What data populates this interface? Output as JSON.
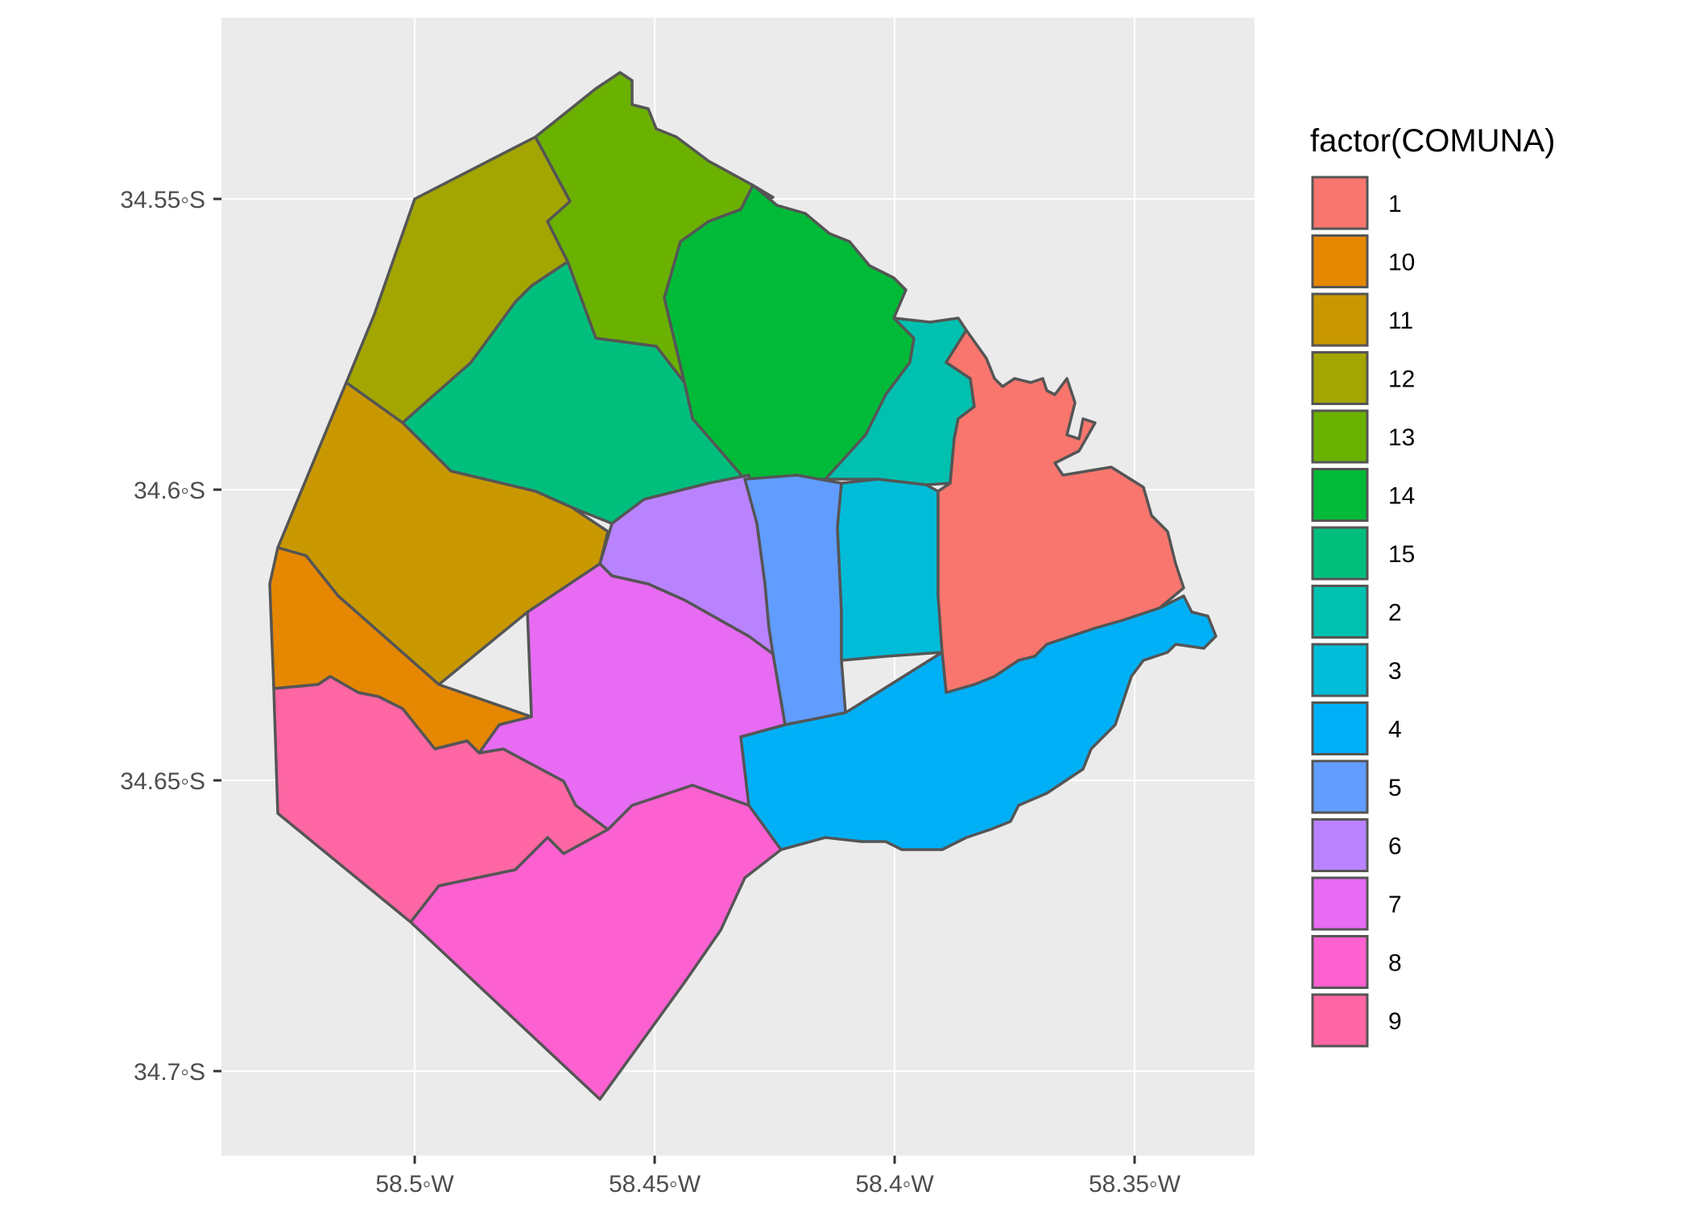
{
  "chart_data": {
    "type": "choropleth",
    "title": "",
    "x_ticks": [
      "58.5◦W",
      "58.45◦W",
      "58.4◦W",
      "58.35◦W"
    ],
    "y_ticks": [
      "34.55◦S",
      "34.6◦S",
      "34.65◦S",
      "34.7◦S"
    ],
    "legend": {
      "title": "factor(COMUNA)",
      "entries": [
        {
          "label": "1",
          "color": "#F8766D"
        },
        {
          "label": "10",
          "color": "#E58700"
        },
        {
          "label": "11",
          "color": "#C99800"
        },
        {
          "label": "12",
          "color": "#A3A500"
        },
        {
          "label": "13",
          "color": "#6BB100"
        },
        {
          "label": "14",
          "color": "#00BA38"
        },
        {
          "label": "15",
          "color": "#00BF7D"
        },
        {
          "label": "2",
          "color": "#00C0AF"
        },
        {
          "label": "3",
          "color": "#00BCD8"
        },
        {
          "label": "4",
          "color": "#00B0F6"
        },
        {
          "label": "5",
          "color": "#619CFF"
        },
        {
          "label": "6",
          "color": "#B983FF"
        },
        {
          "label": "7",
          "color": "#E76BF3"
        },
        {
          "label": "8",
          "color": "#FD61D1"
        },
        {
          "label": "9",
          "color": "#FF67A4"
        }
      ]
    },
    "panel_background": "#EBEBEB",
    "grid_color": "#FFFFFF",
    "border_color": "#555555"
  }
}
